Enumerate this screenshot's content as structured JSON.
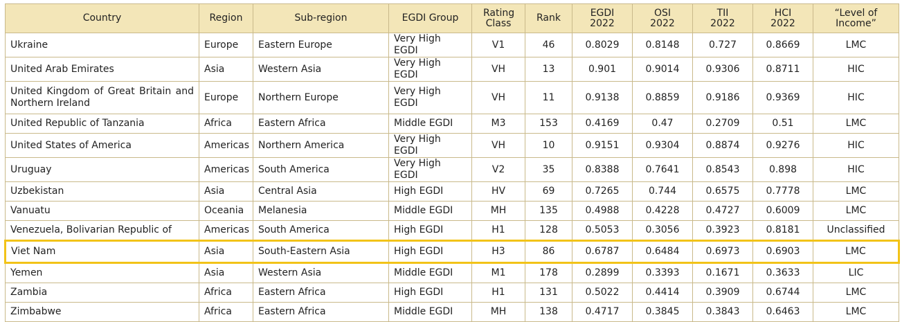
{
  "headers": {
    "country": "Country",
    "region": "Region",
    "subregion": "Sub-region",
    "egdi_group": "EGDI Group",
    "rating_class": "Rating Class",
    "rank": "Rank",
    "egdi": "EGDI 2022",
    "osi": "OSI 2022",
    "tii": "TII 2022",
    "hci": "HCI 2022",
    "income": "“Level of Income”"
  },
  "colors": {
    "header_bg": "#f3e6b8",
    "highlight": "#f2c318",
    "border": "#c9b98a"
  },
  "rows": [
    {
      "country": "Ukraine",
      "region": "Europe",
      "subregion": "Eastern Europe",
      "group": "Very High EGDI",
      "rating": "V1",
      "rank": "46",
      "egdi": "0.8029",
      "osi": "0.8148",
      "tii": "0.727",
      "hci": "0.8669",
      "income": "LMC"
    },
    {
      "country": "United Arab Emirates",
      "region": "Asia",
      "subregion": "Western Asia",
      "group": "Very High EGDI",
      "rating": "VH",
      "rank": "13",
      "egdi": "0.901",
      "osi": "0.9014",
      "tii": "0.9306",
      "hci": "0.8711",
      "income": "HIC"
    },
    {
      "country": "United Kingdom of Great Britain and Northern Ireland",
      "region": "Europe",
      "subregion": "Northern Europe",
      "group": "Very High EGDI",
      "rating": "VH",
      "rank": "11",
      "egdi": "0.9138",
      "osi": "0.8859",
      "tii": "0.9186",
      "hci": "0.9369",
      "income": "HIC"
    },
    {
      "country": "United Republic of Tanzania",
      "region": "Africa",
      "subregion": "Eastern Africa",
      "group": "Middle EGDI",
      "rating": "M3",
      "rank": "153",
      "egdi": "0.4169",
      "osi": "0.47",
      "tii": "0.2709",
      "hci": "0.51",
      "income": "LMC"
    },
    {
      "country": "United States of America",
      "region": "Americas",
      "subregion": "Northern America",
      "group": "Very High EGDI",
      "rating": "VH",
      "rank": "10",
      "egdi": "0.9151",
      "osi": "0.9304",
      "tii": "0.8874",
      "hci": "0.9276",
      "income": "HIC"
    },
    {
      "country": "Uruguay",
      "region": "Americas",
      "subregion": "South America",
      "group": "Very High EGDI",
      "rating": "V2",
      "rank": "35",
      "egdi": "0.8388",
      "osi": "0.7641",
      "tii": "0.8543",
      "hci": "0.898",
      "income": "HIC"
    },
    {
      "country": "Uzbekistan",
      "region": "Asia",
      "subregion": "Central Asia",
      "group": "High EGDI",
      "rating": "HV",
      "rank": "69",
      "egdi": "0.7265",
      "osi": "0.744",
      "tii": "0.6575",
      "hci": "0.7778",
      "income": "LMC"
    },
    {
      "country": "Vanuatu",
      "region": "Oceania",
      "subregion": "Melanesia",
      "group": "Middle EGDI",
      "rating": "MH",
      "rank": "135",
      "egdi": "0.4988",
      "osi": "0.4228",
      "tii": "0.4727",
      "hci": "0.6009",
      "income": "LMC"
    },
    {
      "country": "Venezuela, Bolivarian Republic of",
      "region": "Americas",
      "subregion": "South America",
      "group": "High EGDI",
      "rating": "H1",
      "rank": "128",
      "egdi": "0.5053",
      "osi": "0.3056",
      "tii": "0.3923",
      "hci": "0.8181",
      "income": "Unclassified"
    },
    {
      "country": "Viet Nam",
      "region": "Asia",
      "subregion": "South-Eastern Asia",
      "group": "High EGDI",
      "rating": "H3",
      "rank": "86",
      "egdi": "0.6787",
      "osi": "0.6484",
      "tii": "0.6973",
      "hci": "0.6903",
      "income": "LMC"
    },
    {
      "country": "Yemen",
      "region": "Asia",
      "subregion": "Western Asia",
      "group": "Middle EGDI",
      "rating": "M1",
      "rank": "178",
      "egdi": "0.2899",
      "osi": "0.3393",
      "tii": "0.1671",
      "hci": "0.3633",
      "income": "LIC"
    },
    {
      "country": "Zambia",
      "region": "Africa",
      "subregion": "Eastern Africa",
      "group": "High EGDI",
      "rating": "H1",
      "rank": "131",
      "egdi": "0.5022",
      "osi": "0.4414",
      "tii": "0.3909",
      "hci": "0.6744",
      "income": "LMC"
    },
    {
      "country": "Zimbabwe",
      "region": "Africa",
      "subregion": "Eastern Africa",
      "group": "Middle EGDI",
      "rating": "MH",
      "rank": "138",
      "egdi": "0.4717",
      "osi": "0.3845",
      "tii": "0.3843",
      "hci": "0.6463",
      "income": "LMC"
    }
  ]
}
